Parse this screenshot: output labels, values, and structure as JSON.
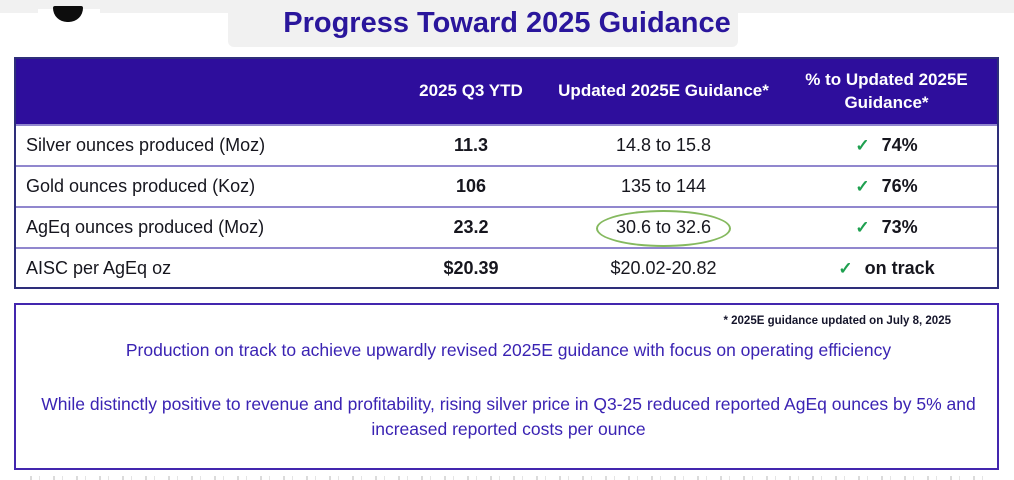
{
  "title": "Progress Toward 2025 Guidance",
  "table": {
    "check_icon": "✓",
    "columns": {
      "metric": "",
      "ytd": "2025 Q3 YTD",
      "guidance": "Updated 2025E Guidance*",
      "pct": "% to Updated 2025E Guidance*"
    },
    "rows": [
      {
        "metric": "Silver ounces produced (Moz)",
        "ytd": "11.3",
        "guidance": "14.8 to 15.8",
        "pct": "74%"
      },
      {
        "metric": "Gold ounces produced (Koz)",
        "ytd": "106",
        "guidance": "135 to 144",
        "pct": "76%"
      },
      {
        "metric": "AgEq ounces produced (Moz)",
        "ytd": "23.2",
        "guidance": "30.6 to 32.6",
        "pct": "73%"
      },
      {
        "metric": "AISC per AgEq oz",
        "ytd": "$20.39",
        "guidance": "$20.02-20.82",
        "pct": "on track"
      }
    ]
  },
  "footnote": "* 2025E guidance updated on July 8, 2025",
  "summary": {
    "paragraph1": "Production on track to achieve upwardly revised 2025E guidance with focus on operating efficiency",
    "paragraph2": "While distinctly positive to revenue and profitability, rising silver price in Q3-25 reduced reported AgEq ounces by 5% and increased reported costs per ounce"
  },
  "colors": {
    "title_text": "#2a169c",
    "header_bg": "#2e0e9c",
    "table_border": "#2e2e7a",
    "row_divider": "#9187ce",
    "check_green": "#1fa050",
    "ellipse_green": "#85b95f",
    "box_border": "#4326ae",
    "paragraph_text": "#3a23b3"
  }
}
